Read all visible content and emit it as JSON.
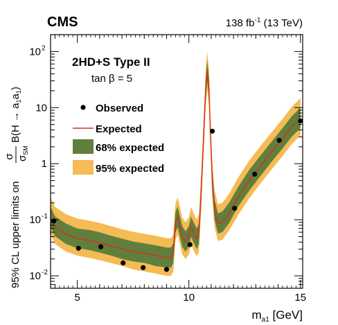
{
  "header": {
    "experiment": "CMS",
    "lumi": "138",
    "lumi_unit": "fb",
    "lumi_exp": "-1",
    "energy": "(13 TeV)"
  },
  "annotation": {
    "model": "2HD+S Type II",
    "tanb_prefix": "tan β = ",
    "tanb_value": "5"
  },
  "colors": {
    "band95": "#F5BB54",
    "band68": "#607F3D",
    "expected": "#E02A1C",
    "observed": "#000000"
  },
  "chart_data": {
    "type": "line",
    "title": "",
    "xlabel": "m",
    "xlabel_sub": "a1",
    "xlabel_unit": "[GeV]",
    "ylabel": {
      "prefix": "95% CL upper limits on ",
      "frac_num": "σ",
      "frac_den": "σ",
      "frac_den_sub": "SM",
      "suffix": "B(H → a",
      "sub1": "1",
      "mid": "a",
      "sub2": "1",
      "close": ")"
    },
    "xlim": [
      3.8,
      15.1
    ],
    "ylim": [
      0.006,
      200
    ],
    "yscale": "log",
    "xticks": [
      5,
      10,
      15
    ],
    "yticks": [
      {
        "value": 0.01,
        "base": "10",
        "exp": "-2"
      },
      {
        "value": 0.1,
        "base": "10",
        "exp": "-1"
      },
      {
        "value": 1,
        "base": "1",
        "exp": ""
      },
      {
        "value": 10,
        "base": "10",
        "exp": ""
      },
      {
        "value": 100,
        "base": "10",
        "exp": "2"
      }
    ],
    "legend": {
      "position": "top-left",
      "entries": [
        "Observed",
        "Expected",
        "68% expected",
        "95% expected"
      ]
    },
    "series": [
      {
        "name": "Expected",
        "x": [
          3.8,
          4.0,
          4.5,
          5.0,
          5.5,
          6.0,
          6.5,
          7.0,
          7.5,
          8.0,
          8.5,
          9.0,
          9.2,
          9.3,
          9.4,
          9.5,
          9.7,
          9.85,
          10.0,
          10.1,
          10.2,
          10.35,
          10.45,
          10.55,
          10.65,
          10.75,
          10.82,
          10.9,
          10.97,
          11.05,
          11.15,
          11.3,
          11.5,
          11.8,
          12.2,
          12.7,
          13.2,
          13.7,
          14.2,
          14.6,
          15.0
        ],
        "values": [
          0.11,
          0.075,
          0.055,
          0.046,
          0.043,
          0.039,
          0.034,
          0.03,
          0.027,
          0.025,
          0.023,
          0.021,
          0.021,
          0.025,
          0.09,
          0.11,
          0.05,
          0.04,
          0.05,
          0.075,
          0.06,
          0.045,
          0.055,
          0.3,
          2.5,
          20,
          45,
          22,
          3,
          0.5,
          0.15,
          0.085,
          0.09,
          0.13,
          0.25,
          0.5,
          0.9,
          1.6,
          2.8,
          4.5,
          6.5
        ]
      },
      {
        "name": "68% expected",
        "x": [
          3.8,
          4.0,
          4.5,
          5.0,
          5.5,
          6.0,
          6.5,
          7.0,
          7.5,
          8.0,
          8.5,
          9.0,
          9.2,
          9.3,
          9.4,
          9.5,
          9.7,
          9.85,
          10.0,
          10.1,
          10.2,
          10.35,
          10.45,
          10.55,
          10.65,
          10.75,
          10.82,
          10.9,
          10.97,
          11.05,
          11.15,
          11.3,
          11.5,
          11.8,
          12.2,
          12.7,
          13.2,
          13.7,
          14.2,
          14.6,
          15.0
        ],
        "lower": [
          0.075,
          0.051,
          0.037,
          0.031,
          0.029,
          0.026,
          0.023,
          0.02,
          0.018,
          0.017,
          0.015,
          0.014,
          0.014,
          0.017,
          0.06,
          0.073,
          0.033,
          0.027,
          0.033,
          0.05,
          0.04,
          0.03,
          0.037,
          0.2,
          1.7,
          13,
          30,
          15,
          2,
          0.33,
          0.1,
          0.057,
          0.06,
          0.087,
          0.17,
          0.33,
          0.6,
          1.07,
          1.87,
          3.0,
          4.3
        ],
        "upper": [
          0.17,
          0.115,
          0.085,
          0.07,
          0.066,
          0.06,
          0.052,
          0.046,
          0.041,
          0.038,
          0.035,
          0.032,
          0.032,
          0.038,
          0.14,
          0.17,
          0.077,
          0.062,
          0.077,
          0.115,
          0.092,
          0.07,
          0.085,
          0.46,
          3.8,
          31,
          69,
          34,
          4.6,
          0.77,
          0.23,
          0.13,
          0.14,
          0.2,
          0.38,
          0.77,
          1.38,
          2.45,
          4.3,
          6.9,
          10
        ]
      },
      {
        "name": "95% expected",
        "x": [
          3.8,
          4.0,
          4.5,
          5.0,
          5.5,
          6.0,
          6.5,
          7.0,
          7.5,
          8.0,
          8.5,
          9.0,
          9.2,
          9.3,
          9.4,
          9.5,
          9.7,
          9.85,
          10.0,
          10.1,
          10.2,
          10.35,
          10.45,
          10.55,
          10.65,
          10.75,
          10.82,
          10.9,
          10.97,
          11.05,
          11.15,
          11.3,
          11.5,
          11.8,
          12.2,
          12.7,
          13.2,
          13.7,
          14.2,
          14.6,
          15.0
        ],
        "lower": [
          0.055,
          0.037,
          0.027,
          0.023,
          0.021,
          0.019,
          0.017,
          0.015,
          0.013,
          0.012,
          0.011,
          0.01,
          0.01,
          0.012,
          0.044,
          0.054,
          0.024,
          0.02,
          0.024,
          0.037,
          0.029,
          0.022,
          0.027,
          0.15,
          1.22,
          9.8,
          22,
          10.8,
          1.47,
          0.24,
          0.073,
          0.042,
          0.044,
          0.064,
          0.12,
          0.24,
          0.44,
          0.78,
          1.37,
          2.2,
          3.2
        ],
        "upper": [
          0.25,
          0.17,
          0.125,
          0.105,
          0.097,
          0.088,
          0.077,
          0.068,
          0.061,
          0.056,
          0.052,
          0.047,
          0.047,
          0.056,
          0.2,
          0.25,
          0.11,
          0.09,
          0.11,
          0.17,
          0.135,
          0.1,
          0.125,
          0.68,
          5.6,
          45,
          100,
          50,
          6.8,
          1.13,
          0.34,
          0.19,
          0.2,
          0.29,
          0.56,
          1.13,
          2.04,
          3.6,
          6.3,
          10.2,
          14.7
        ]
      },
      {
        "name": "Observed",
        "x": [
          3.95,
          5.05,
          6.05,
          7.05,
          7.95,
          9.0,
          10.05,
          11.05,
          12.05,
          12.95,
          14.05,
          15.0
        ],
        "values": [
          0.095,
          0.031,
          0.033,
          0.017,
          0.014,
          0.013,
          0.036,
          3.8,
          0.16,
          0.65,
          2.6,
          5.8
        ]
      }
    ]
  }
}
